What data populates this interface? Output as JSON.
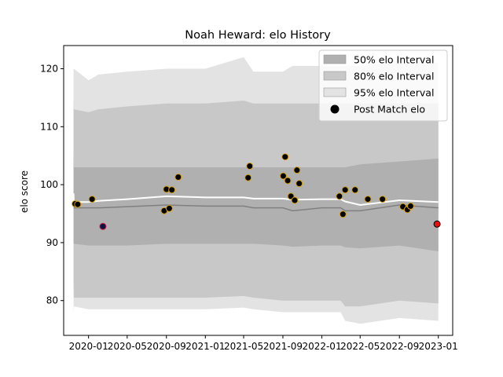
{
  "chart_data": {
    "type": "line",
    "title": "Noah Heward: elo History",
    "xlabel": "",
    "ylabel": "elo score",
    "xlim": [
      "2019-10-15",
      "2023-02-15"
    ],
    "ylim": [
      74,
      124
    ],
    "grid": false,
    "legend_position": "top-right",
    "x_ticks": [
      "2020-01",
      "2020-05",
      "2020-09",
      "2021-01",
      "2021-05",
      "2021-09",
      "2022-01",
      "2022-05",
      "2022-09",
      "2023-01"
    ],
    "y_ticks": [
      80,
      90,
      100,
      110,
      120
    ],
    "colors": {
      "band_50": "#b0b0b0",
      "band_80": "#c8c8c8",
      "band_95": "#e3e3e3",
      "median_line": "#ffffff",
      "dark_line": "#808080",
      "point_fill": "#000000",
      "point_edge": "#d4a017",
      "latest_fill": "#e81010",
      "outlier_edge": "#cc2244"
    },
    "legend": [
      {
        "label": "50% elo Interval",
        "kind": "band_50"
      },
      {
        "label": "80% elo Interval",
        "kind": "band_80"
      },
      {
        "label": "95% elo Interval",
        "kind": "band_95"
      },
      {
        "label": "Post Match elo",
        "kind": "point"
      }
    ],
    "intervals": {
      "x": [
        "2019-11-15",
        "2019-11-16",
        "2020-01-01",
        "2020-02-01",
        "2020-05-01",
        "2020-09-01",
        "2021-01-01",
        "2021-05-01",
        "2021-06-01",
        "2021-09-01",
        "2021-10-01",
        "2022-01-01",
        "2022-03-01",
        "2022-03-15",
        "2022-05-01",
        "2022-09-01",
        "2023-01-01"
      ],
      "p95_upper": [
        120,
        120,
        118,
        119,
        119.5,
        120,
        120,
        122,
        119.5,
        119.5,
        120.5,
        120.5,
        120.5,
        120.5,
        120.5,
        121,
        121
      ],
      "p80_upper": [
        115,
        113,
        112.5,
        113,
        113.5,
        114,
        114,
        114.5,
        114,
        114,
        114,
        114,
        114,
        114,
        114,
        114,
        114
      ],
      "p50_upper": [
        106,
        103,
        103,
        103,
        103,
        103,
        103,
        103,
        103,
        103,
        103,
        103,
        103,
        103,
        103.5,
        104,
        104.5
      ],
      "median": [
        98.5,
        97,
        97,
        97.2,
        97.5,
        98,
        97.8,
        97.8,
        97.6,
        97.6,
        97.4,
        97.5,
        97.5,
        97.1,
        96.5,
        97.3,
        97
      ],
      "dark_line": [
        96,
        96,
        96,
        96,
        96.2,
        96.5,
        96.3,
        96.3,
        96,
        96,
        95.5,
        96,
        96,
        95.5,
        95.5,
        96.5,
        96
      ],
      "p50_lower": [
        90,
        89.8,
        89.5,
        89.5,
        89.5,
        89.8,
        89.8,
        89.8,
        89.8,
        89.5,
        89.3,
        89.5,
        89.5,
        89.2,
        89,
        89.5,
        88.5
      ],
      "p80_lower": [
        83,
        80.5,
        80.5,
        80.5,
        80.5,
        80.5,
        80.5,
        80.8,
        80.5,
        80,
        80,
        80,
        80,
        79,
        79,
        80,
        79.5
      ],
      "p95_lower": [
        78,
        79,
        78.5,
        78.5,
        78.5,
        78.5,
        78.5,
        78.8,
        78.5,
        78,
        78,
        78,
        78,
        76.5,
        76,
        77,
        76.5
      ]
    },
    "points": [
      {
        "x": "2019-11-20",
        "y": 96.7
      },
      {
        "x": "2019-11-28",
        "y": 96.6
      },
      {
        "x": "2020-01-12",
        "y": 97.5
      },
      {
        "x": "2020-02-15",
        "y": 92.8,
        "outlier": true
      },
      {
        "x": "2020-08-25",
        "y": 95.5
      },
      {
        "x": "2020-09-01",
        "y": 99.2
      },
      {
        "x": "2020-09-10",
        "y": 95.9
      },
      {
        "x": "2020-09-18",
        "y": 99.1
      },
      {
        "x": "2020-10-08",
        "y": 101.3
      },
      {
        "x": "2021-05-15",
        "y": 101.2
      },
      {
        "x": "2021-05-20",
        "y": 103.2
      },
      {
        "x": "2021-09-02",
        "y": 101.5
      },
      {
        "x": "2021-09-08",
        "y": 104.8
      },
      {
        "x": "2021-09-16",
        "y": 100.7
      },
      {
        "x": "2021-09-26",
        "y": 98.0
      },
      {
        "x": "2021-10-08",
        "y": 97.3
      },
      {
        "x": "2021-10-15",
        "y": 102.5
      },
      {
        "x": "2021-10-22",
        "y": 100.2
      },
      {
        "x": "2022-02-25",
        "y": 98.0
      },
      {
        "x": "2022-03-08",
        "y": 94.9
      },
      {
        "x": "2022-03-15",
        "y": 99.1
      },
      {
        "x": "2022-04-15",
        "y": 99.1
      },
      {
        "x": "2022-05-25",
        "y": 97.5
      },
      {
        "x": "2022-07-10",
        "y": 97.5
      },
      {
        "x": "2022-09-12",
        "y": 96.2
      },
      {
        "x": "2022-09-26",
        "y": 95.7
      },
      {
        "x": "2022-10-06",
        "y": 96.3
      },
      {
        "x": "2022-12-28",
        "y": 93.2,
        "latest": true
      }
    ]
  }
}
